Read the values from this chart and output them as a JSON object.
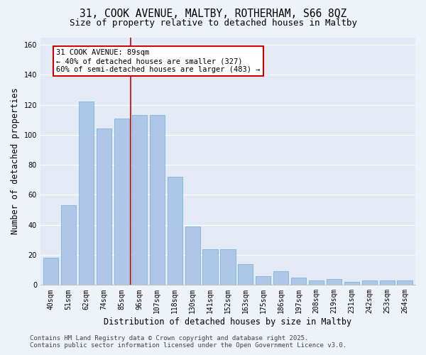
{
  "title_line1": "31, COOK AVENUE, MALTBY, ROTHERHAM, S66 8QZ",
  "title_line2": "Size of property relative to detached houses in Maltby",
  "xlabel": "Distribution of detached houses by size in Maltby",
  "ylabel": "Number of detached properties",
  "categories": [
    "40sqm",
    "51sqm",
    "62sqm",
    "74sqm",
    "85sqm",
    "96sqm",
    "107sqm",
    "118sqm",
    "130sqm",
    "141sqm",
    "152sqm",
    "163sqm",
    "175sqm",
    "186sqm",
    "197sqm",
    "208sqm",
    "219sqm",
    "231sqm",
    "242sqm",
    "253sqm",
    "264sqm"
  ],
  "values": [
    18,
    53,
    122,
    104,
    111,
    113,
    113,
    72,
    39,
    24,
    24,
    14,
    6,
    9,
    5,
    3,
    4,
    2,
    3,
    3,
    3
  ],
  "bar_color": "#aec6e8",
  "bar_edge_color": "#6aaed6",
  "vline_x": 4.5,
  "annotation_text": "31 COOK AVENUE: 89sqm\n← 40% of detached houses are smaller (327)\n60% of semi-detached houses are larger (483) →",
  "annotation_box_color": "#ffffff",
  "annotation_box_edge_color": "#cc0000",
  "vline_color": "#cc0000",
  "ylim": [
    0,
    165
  ],
  "yticks": [
    0,
    20,
    40,
    60,
    80,
    100,
    120,
    140,
    160
  ],
  "footer_line1": "Contains HM Land Registry data © Crown copyright and database right 2025.",
  "footer_line2": "Contains public sector information licensed under the Open Government Licence v3.0.",
  "bg_color": "#eef2f9",
  "plot_bg_color": "#e4eaf5",
  "grid_color": "#ffffff",
  "title_fontsize": 10.5,
  "subtitle_fontsize": 9,
  "axis_label_fontsize": 8.5,
  "tick_fontsize": 7,
  "annotation_fontsize": 7.5,
  "footer_fontsize": 6.5
}
